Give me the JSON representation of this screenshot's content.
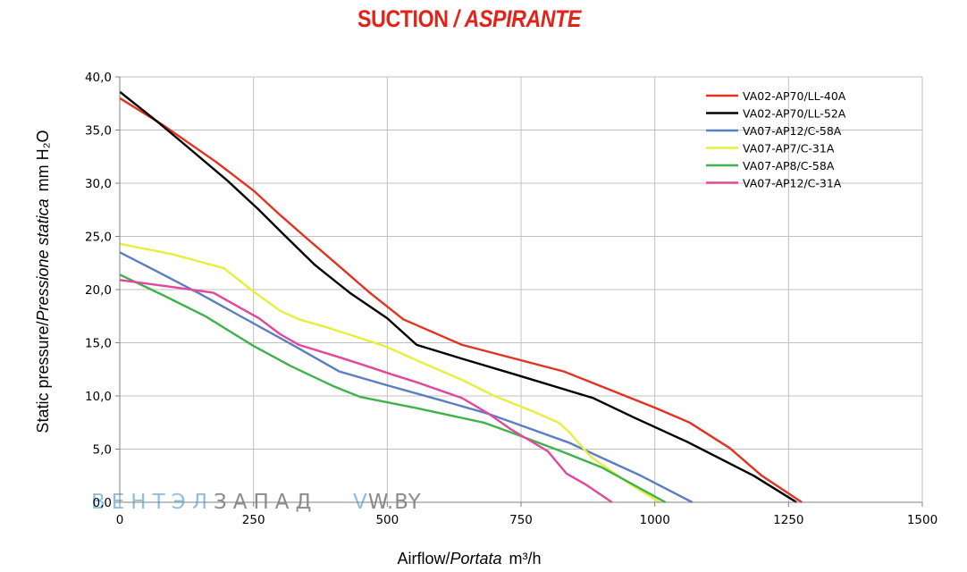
{
  "title": {
    "main": "SUCTION",
    "sep": "/",
    "sub": "ASPIRANTE"
  },
  "watermark": {
    "part1": "ВЕНТЭЛ",
    "part2": "ЗАПАД",
    "part3": "V",
    "part4": "W.BY"
  },
  "colors": {
    "title": "#e2231a",
    "grid": "#c0c0c0",
    "axis": "#808080"
  },
  "chart_data": {
    "type": "line",
    "xlabel": {
      "main": "Airflow",
      "sep": "/",
      "italic": "Portata",
      "unit": "m³/h"
    },
    "ylabel": {
      "main": "Static pressure",
      "sep": "/",
      "italic": "Pressione statica",
      "unit": "mm H₂O"
    },
    "xlim": [
      0,
      1500
    ],
    "ylim": [
      0,
      40
    ],
    "x_ticks": [
      "0",
      "250",
      "500",
      "750",
      "1000",
      "1250",
      "1500"
    ],
    "y_ticks": [
      "0,0",
      "5,0",
      "10,0",
      "15,0",
      "20,0",
      "25,0",
      "30,0",
      "35,0",
      "40,0"
    ],
    "grid": true,
    "legend_position": "top-right",
    "series": [
      {
        "name": "VA02-AP70/LL-40A",
        "color": "#e3321f",
        "points": [
          [
            0,
            38
          ],
          [
            80,
            35.5
          ],
          [
            180,
            32
          ],
          [
            250,
            29.3
          ],
          [
            300,
            27
          ],
          [
            350,
            24.8
          ],
          [
            410,
            22.2
          ],
          [
            465,
            19.8
          ],
          [
            530,
            17.2
          ],
          [
            640,
            14.8
          ],
          [
            830,
            12.3
          ],
          [
            890,
            11.1
          ],
          [
            1000,
            8.9
          ],
          [
            1065,
            7.5
          ],
          [
            1140,
            5.1
          ],
          [
            1200,
            2.5
          ],
          [
            1275,
            0
          ]
        ]
      },
      {
        "name": "VA02-AP70/LL-52A",
        "color": "#000000",
        "points": [
          [
            0,
            38.6
          ],
          [
            70,
            35.8
          ],
          [
            120,
            33.7
          ],
          [
            200,
            30.3
          ],
          [
            260,
            27.5
          ],
          [
            310,
            25
          ],
          [
            365,
            22.3
          ],
          [
            430,
            19.7
          ],
          [
            500,
            17.3
          ],
          [
            555,
            14.8
          ],
          [
            640,
            13.5
          ],
          [
            740,
            12
          ],
          [
            885,
            9.8
          ],
          [
            960,
            8
          ],
          [
            1060,
            5.7
          ],
          [
            1185,
            2.5
          ],
          [
            1265,
            0
          ]
        ]
      },
      {
        "name": "VA07-AP12/C-58A",
        "color": "#5b7ec2",
        "points": [
          [
            0,
            23.5
          ],
          [
            70,
            21.7
          ],
          [
            150,
            19.6
          ],
          [
            240,
            17.1
          ],
          [
            330,
            14.6
          ],
          [
            410,
            12.3
          ],
          [
            500,
            11
          ],
          [
            600,
            9.6
          ],
          [
            690,
            8.3
          ],
          [
            740,
            7.4
          ],
          [
            840,
            5.6
          ],
          [
            900,
            4.2
          ],
          [
            970,
            2.6
          ],
          [
            1070,
            0
          ]
        ]
      },
      {
        "name": "VA07-AP7/C-31A",
        "color": "#e8ee3c",
        "points": [
          [
            0,
            24.3
          ],
          [
            100,
            23.3
          ],
          [
            195,
            22
          ],
          [
            245,
            20
          ],
          [
            300,
            18
          ],
          [
            335,
            17.2
          ],
          [
            390,
            16.4
          ],
          [
            495,
            14.7
          ],
          [
            580,
            12.8
          ],
          [
            640,
            11.5
          ],
          [
            700,
            10
          ],
          [
            770,
            8.6
          ],
          [
            820,
            7.5
          ],
          [
            840,
            6.6
          ],
          [
            880,
            4.3
          ],
          [
            960,
            1.5
          ],
          [
            1010,
            0
          ]
        ]
      },
      {
        "name": "VA07-AP8/C-58A",
        "color": "#3fb24a",
        "points": [
          [
            0,
            21.4
          ],
          [
            80,
            19.5
          ],
          [
            160,
            17.5
          ],
          [
            250,
            14.7
          ],
          [
            320,
            12.8
          ],
          [
            400,
            10.9
          ],
          [
            450,
            9.9
          ],
          [
            550,
            8.9
          ],
          [
            680,
            7.5
          ],
          [
            740,
            6.4
          ],
          [
            820,
            4.9
          ],
          [
            900,
            3.3
          ],
          [
            1020,
            0
          ]
        ]
      },
      {
        "name": "VA07-AP12/C-31A",
        "color": "#e2479c",
        "points": [
          [
            0,
            20.9
          ],
          [
            90,
            20.3
          ],
          [
            175,
            19.7
          ],
          [
            200,
            19
          ],
          [
            260,
            17.3
          ],
          [
            300,
            15.8
          ],
          [
            335,
            14.8
          ],
          [
            400,
            13.8
          ],
          [
            450,
            13
          ],
          [
            510,
            12
          ],
          [
            560,
            11.2
          ],
          [
            640,
            9.8
          ],
          [
            690,
            8.3
          ],
          [
            730,
            6.9
          ],
          [
            800,
            4.8
          ],
          [
            835,
            2.7
          ],
          [
            870,
            1.7
          ],
          [
            920,
            0
          ]
        ]
      }
    ]
  }
}
